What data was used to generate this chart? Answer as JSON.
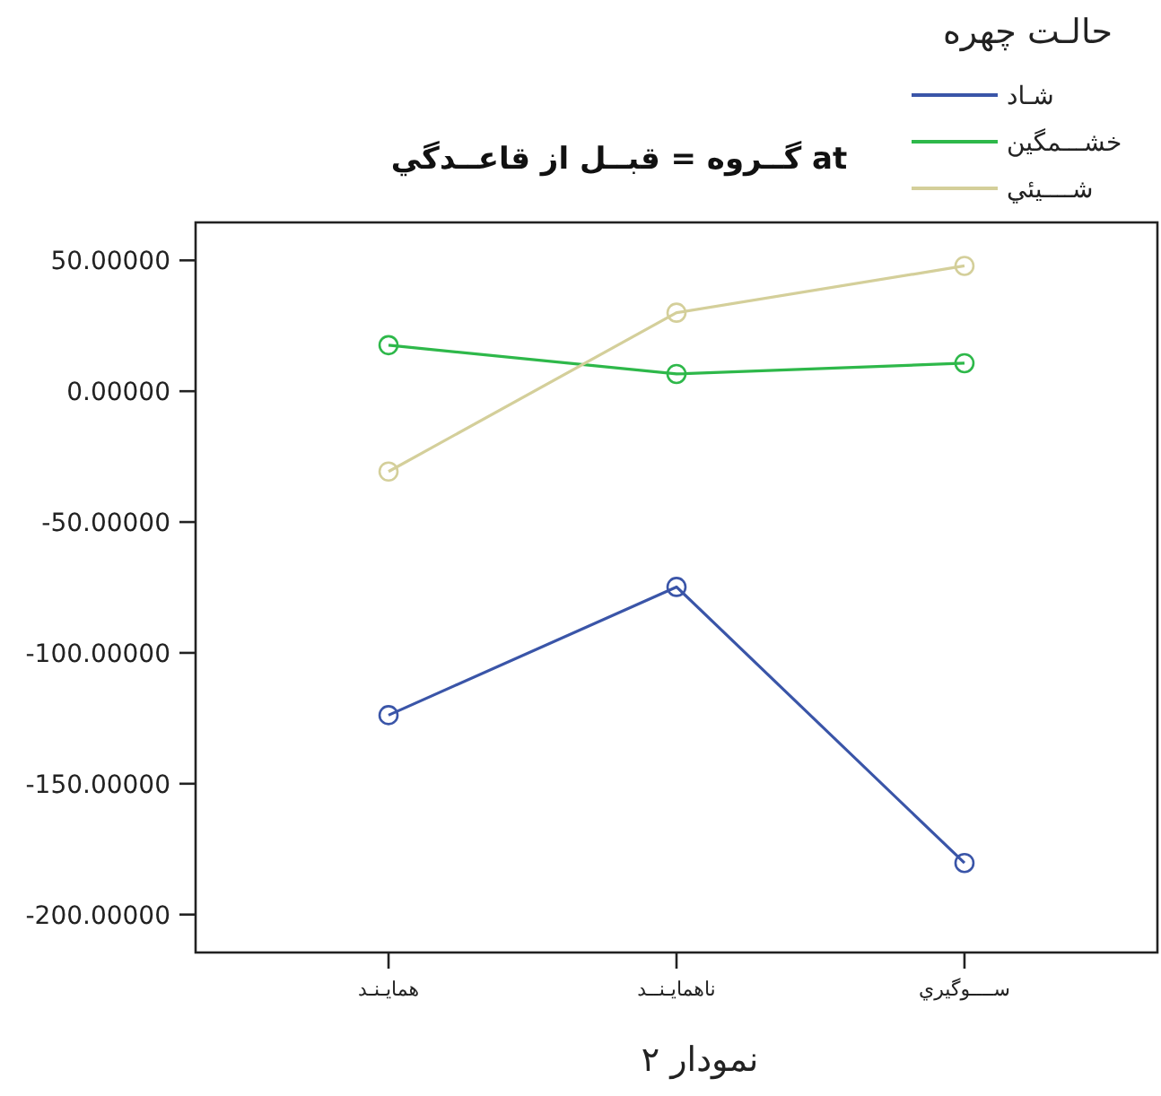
{
  "chart_data": {
    "type": "line",
    "title": "گــروه = قبــل از قاعــدگي at",
    "legend_title": "حالـت چهره",
    "categories": [
      "همايـنـد",
      "ناهمايـنــد",
      "ســــوگيري"
    ],
    "series": [
      {
        "name": "شـاد",
        "color": "#3a55a8",
        "values": [
          -123.8,
          -74.8,
          -180.3
        ]
      },
      {
        "name": "خشـــمگین",
        "color": "#2eb84a",
        "values": [
          17.6,
          6.6,
          10.7
        ]
      },
      {
        "name": "شــــيئي",
        "color": "#d4cf9a",
        "values": [
          -30.7,
          30.0,
          47.9
        ]
      }
    ],
    "ylim": [
      -214.5,
      64.5
    ],
    "yticks": [
      {
        "value": 50,
        "label": "50.00000"
      },
      {
        "value": 0,
        "label": "0.00000"
      },
      {
        "value": -50,
        "label": "-50.00000"
      },
      {
        "value": -100,
        "label": "-100.00000"
      },
      {
        "value": -150,
        "label": "-150.00000"
      },
      {
        "value": -200,
        "label": "-200.00000"
      }
    ],
    "marker": "circle",
    "legend": "top right",
    "grid": false,
    "annotations": [
      "نمودار ۲"
    ]
  }
}
